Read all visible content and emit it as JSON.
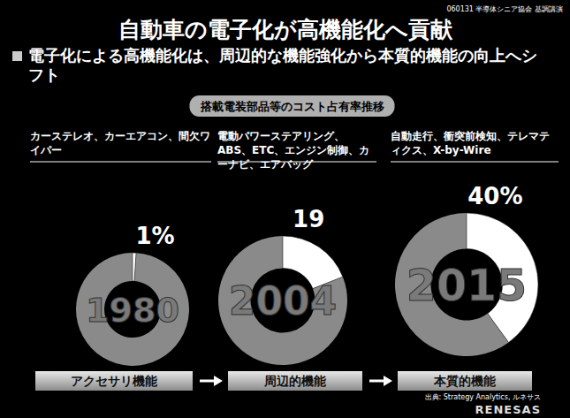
{
  "header": {
    "title": "自動車の電子化が高機能化へ貢献",
    "note": "060131 半導体シニア協会 基調講演",
    "bullet": "電子化による高機能化は、周辺的な機能強化から本質的機能の向上へシフト",
    "subtitle": "搭載電装部品等のコスト占有率推移"
  },
  "chart_data": [
    {
      "type": "pie",
      "title": "1980",
      "subtitle": "カーステレオ、カーエアコン、間欠ワイパー",
      "values": [
        1
      ],
      "value_labels": [
        "1%"
      ],
      "data_labels": true,
      "color": "#ffffff"
    },
    {
      "type": "pie",
      "title": "2004",
      "subtitle": "電動パワーステアリング、ABS、ETC、エンジン制御、カーナビ、エアバッグ",
      "values": [
        19
      ],
      "value_labels": [
        "19"
      ],
      "data_labels": true,
      "color": "#ffffff"
    },
    {
      "type": "pie",
      "title": "2015",
      "subtitle": "自動走行、衝突前検知、テレマティクス、X-by-Wire",
      "values": [
        40
      ],
      "value_labels": [
        "40%"
      ],
      "data_labels": true,
      "color": "#ffffff"
    }
  ],
  "stages": [
    "アクセサリ機能",
    "周辺的機能",
    "本質的機能"
  ],
  "footer": {
    "source": "出典: Strategy Analytics, ルネサス",
    "logo": "RENESAS"
  }
}
